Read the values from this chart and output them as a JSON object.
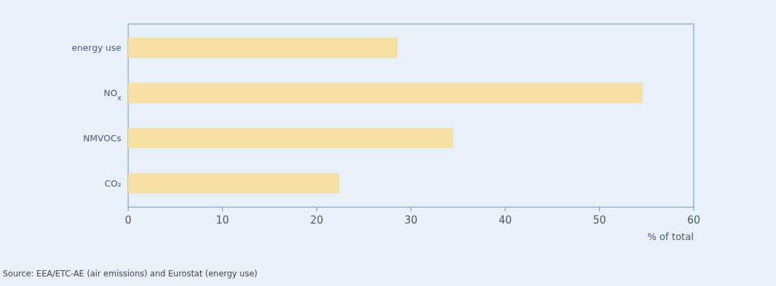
{
  "chart_data": {
    "type": "bar",
    "orientation": "horizontal",
    "categories": [
      "energy use",
      "NO$_{x}$",
      "NMVOCs",
      "CO₂"
    ],
    "values": [
      28.6,
      54.6,
      34.5,
      22.4
    ],
    "color": "#f6e0a4",
    "xlim": [
      0,
      60
    ],
    "xticks": [
      0,
      10,
      20,
      30,
      40,
      50,
      60
    ],
    "xlabel": "% of total",
    "grid": false,
    "annotations": [
      "Source: EEA/ETC-AE (air emissions) and Eurostat (energy use)"
    ]
  }
}
